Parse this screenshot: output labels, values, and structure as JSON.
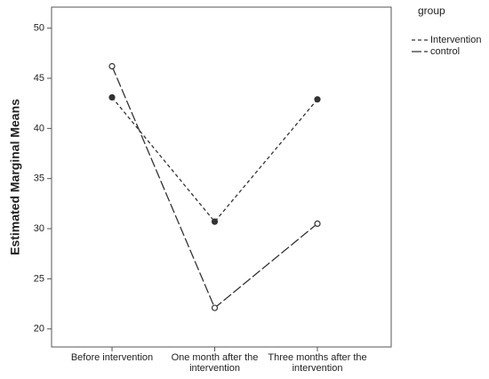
{
  "chart_data": {
    "type": "line",
    "y_label": "Estimated Marginal Means",
    "legend_title": "group",
    "categories": [
      "Before intervention",
      "One month after the intervention",
      "Three months after the intervention"
    ],
    "series": [
      {
        "name": "Intervention",
        "color": "#333333",
        "values": [
          43.1,
          30.7,
          42.9
        ]
      },
      {
        "name": "control",
        "color": "#333333",
        "values": [
          46.2,
          22.1,
          30.5
        ]
      }
    ],
    "ylim": [
      18.2,
      52.1
    ],
    "yticks": [
      20,
      25,
      30,
      35,
      40,
      45,
      50
    ]
  }
}
